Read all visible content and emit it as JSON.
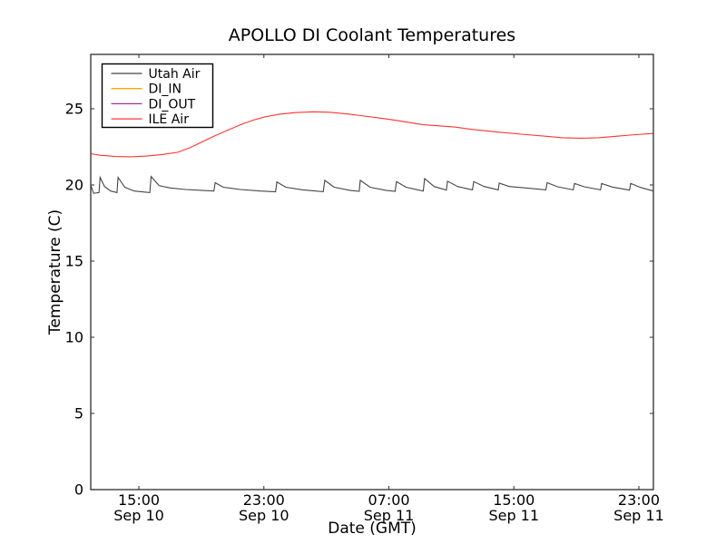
{
  "chart_data": {
    "type": "line",
    "title": "APOLLO DI Coolant Temperatures",
    "xlabel": "Date (GMT)",
    "ylabel": "Temperature (C)",
    "grid": false,
    "x_axis": {
      "unit": "hours since Sep 10 00:00 GMT",
      "range": [
        11.92,
        47.93
      ],
      "ticks": [
        {
          "hour": 15,
          "time": "15:00",
          "date": "Sep 10"
        },
        {
          "hour": 23,
          "time": "23:00",
          "date": "Sep 10"
        },
        {
          "hour": 31,
          "time": "07:00",
          "date": "Sep 11"
        },
        {
          "hour": 39,
          "time": "15:00",
          "date": "Sep 11"
        },
        {
          "hour": 47,
          "time": "23:00",
          "date": "Sep 11"
        }
      ]
    },
    "y_axis": {
      "range": [
        0,
        28.57
      ],
      "ticks": [
        0,
        5,
        10,
        15,
        20,
        25
      ]
    },
    "legend": {
      "position": "upper-left"
    },
    "series": [
      {
        "name": "Utah Air",
        "color": "#454545",
        "overlaps_axis": false,
        "points": [
          [
            11.92,
            20.0
          ],
          [
            12.1,
            19.45
          ],
          [
            12.45,
            19.5
          ],
          [
            12.52,
            20.5
          ],
          [
            12.8,
            19.9
          ],
          [
            13.2,
            19.6
          ],
          [
            13.6,
            19.5
          ],
          [
            13.67,
            20.5
          ],
          [
            14.1,
            19.85
          ],
          [
            14.7,
            19.6
          ],
          [
            15.7,
            19.5
          ],
          [
            15.78,
            20.55
          ],
          [
            16.3,
            19.95
          ],
          [
            17.0,
            19.8
          ],
          [
            18.0,
            19.7
          ],
          [
            19.0,
            19.65
          ],
          [
            19.8,
            19.6
          ],
          [
            19.88,
            20.15
          ],
          [
            20.4,
            19.85
          ],
          [
            21.5,
            19.7
          ],
          [
            22.8,
            19.6
          ],
          [
            23.75,
            19.55
          ],
          [
            23.83,
            20.2
          ],
          [
            24.4,
            19.85
          ],
          [
            25.5,
            19.68
          ],
          [
            26.8,
            19.56
          ],
          [
            26.9,
            20.3
          ],
          [
            27.5,
            19.85
          ],
          [
            28.5,
            19.65
          ],
          [
            29.1,
            19.58
          ],
          [
            29.17,
            20.3
          ],
          [
            29.8,
            19.85
          ],
          [
            30.8,
            19.65
          ],
          [
            31.4,
            19.58
          ],
          [
            31.49,
            20.22
          ],
          [
            32.1,
            19.85
          ],
          [
            33.2,
            19.6
          ],
          [
            33.29,
            20.42
          ],
          [
            33.9,
            19.9
          ],
          [
            34.68,
            19.66
          ],
          [
            34.75,
            20.25
          ],
          [
            35.4,
            19.9
          ],
          [
            36.35,
            19.68
          ],
          [
            36.43,
            20.22
          ],
          [
            37.1,
            19.9
          ],
          [
            38.0,
            19.68
          ],
          [
            38.06,
            20.12
          ],
          [
            38.7,
            19.9
          ],
          [
            40.0,
            19.78
          ],
          [
            41.05,
            19.68
          ],
          [
            41.13,
            20.15
          ],
          [
            41.8,
            19.88
          ],
          [
            42.8,
            19.68
          ],
          [
            42.88,
            20.1
          ],
          [
            43.5,
            19.88
          ],
          [
            44.55,
            19.68
          ],
          [
            44.62,
            20.1
          ],
          [
            45.3,
            19.86
          ],
          [
            46.4,
            19.66
          ],
          [
            46.48,
            20.1
          ],
          [
            47.1,
            19.84
          ],
          [
            47.93,
            19.6
          ]
        ]
      },
      {
        "name": "DI_IN",
        "color": "#ffa500",
        "overlaps_axis": true,
        "points": [
          [
            11.92,
            0.0
          ],
          [
            47.93,
            0.0
          ]
        ]
      },
      {
        "name": "DI_OUT",
        "color": "#993399",
        "overlaps_axis": true,
        "points": [
          [
            11.92,
            0.0
          ],
          [
            47.93,
            0.0
          ]
        ]
      },
      {
        "name": "ILE Air",
        "color": "#ff3333",
        "overlaps_axis": false,
        "points": [
          [
            11.92,
            22.05
          ],
          [
            12.5,
            21.95
          ],
          [
            13.5,
            21.87
          ],
          [
            14.5,
            21.85
          ],
          [
            15.5,
            21.9
          ],
          [
            16.5,
            22.0
          ],
          [
            17.5,
            22.15
          ],
          [
            18.3,
            22.45
          ],
          [
            19.0,
            22.8
          ],
          [
            19.8,
            23.2
          ],
          [
            20.7,
            23.6
          ],
          [
            21.5,
            23.95
          ],
          [
            22.3,
            24.25
          ],
          [
            23.0,
            24.45
          ],
          [
            24.0,
            24.65
          ],
          [
            25.0,
            24.75
          ],
          [
            26.2,
            24.8
          ],
          [
            27.2,
            24.77
          ],
          [
            28.2,
            24.68
          ],
          [
            29.2,
            24.55
          ],
          [
            30.2,
            24.42
          ],
          [
            31.2,
            24.28
          ],
          [
            32.2,
            24.12
          ],
          [
            33.2,
            23.95
          ],
          [
            34.2,
            23.88
          ],
          [
            35.2,
            23.8
          ],
          [
            36.3,
            23.65
          ],
          [
            38.0,
            23.47
          ],
          [
            39.8,
            23.3
          ],
          [
            41.0,
            23.2
          ],
          [
            42.1,
            23.1
          ],
          [
            43.3,
            23.07
          ],
          [
            44.4,
            23.1
          ],
          [
            45.6,
            23.2
          ],
          [
            46.8,
            23.3
          ],
          [
            47.93,
            23.38
          ]
        ]
      }
    ]
  }
}
